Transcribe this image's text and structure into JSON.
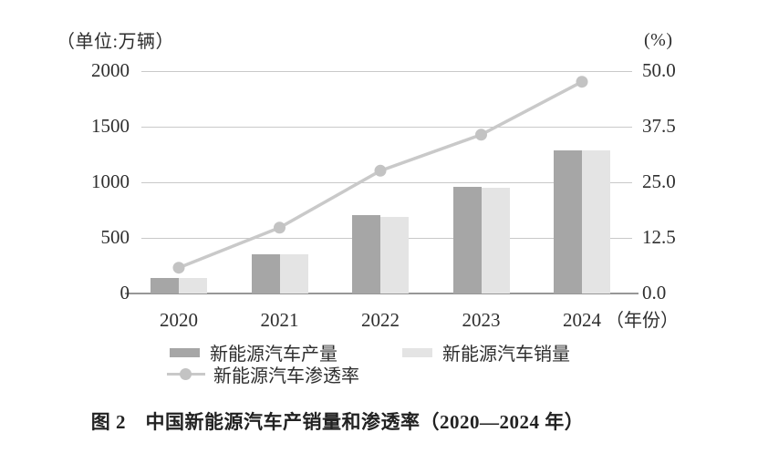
{
  "figure": {
    "caption": "图 2　中国新能源汽车产销量和渗透率（2020—2024 年）"
  },
  "chart_data": {
    "type": "bar",
    "title": "",
    "categories": [
      "2020",
      "2021",
      "2022",
      "2023",
      "2024"
    ],
    "series": [
      {
        "name": "新能源汽车产量",
        "type": "bar",
        "axis": "left",
        "color": "#a6a6a6",
        "values": [
          136.6,
          354.5,
          705.8,
          958.7,
          1288.8
        ]
      },
      {
        "name": "新能源汽车销量",
        "type": "bar",
        "axis": "left",
        "color": "#e4e4e4",
        "values": [
          136.7,
          352.1,
          688.7,
          949.5,
          1286.6
        ]
      },
      {
        "name": "新能源汽车渗透率",
        "type": "line",
        "axis": "right",
        "color": "#c9c9c9",
        "marker_color": "#c3c3c3",
        "values": [
          5.8,
          14.8,
          27.6,
          35.7,
          47.6
        ]
      }
    ],
    "left_axis": {
      "unit_label": "（单位:万辆）",
      "ticks": [
        "0",
        "500",
        "1000",
        "1500",
        "2000"
      ],
      "tick_values": [
        0,
        500,
        1000,
        1500,
        2000
      ],
      "range": [
        0,
        2000
      ]
    },
    "right_axis": {
      "unit_label": "(%)",
      "ticks": [
        "0.0",
        "12.5",
        "25.0",
        "37.5",
        "50.0"
      ],
      "tick_values": [
        0,
        12.5,
        25,
        37.5,
        50
      ],
      "range": [
        0,
        50
      ]
    },
    "x_axis": {
      "suffix_label": "（年份）"
    },
    "legend": [
      "新能源汽车产量",
      "新能源汽车销量",
      "新能源汽车渗透率"
    ],
    "legend_position": "bottom",
    "grid": true,
    "colors": {
      "grid": "#c9c9c9",
      "axis": "#979797",
      "text": "#2e2e2e"
    }
  }
}
